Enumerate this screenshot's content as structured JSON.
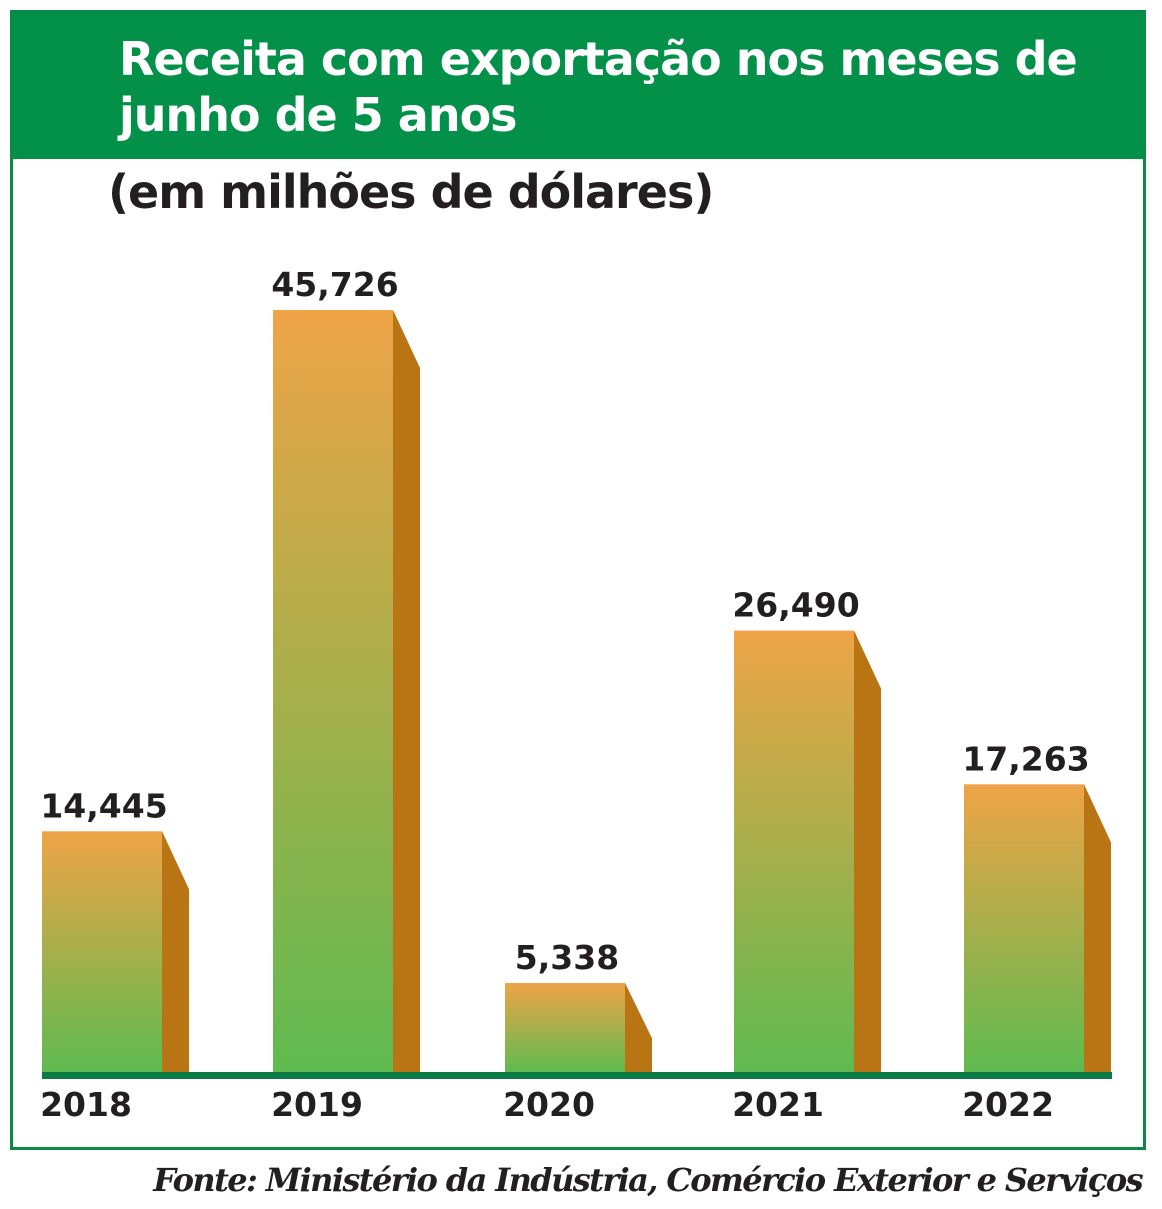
{
  "chart_data": {
    "type": "bar",
    "title": "Receita com exportação nos meses de junho de 5 anos",
    "subtitle": "(em milhões de dólares)",
    "categories": [
      "2018",
      "2019",
      "2020",
      "2021",
      "2022"
    ],
    "values": [
      14445,
      45726,
      5338,
      26490,
      17263
    ],
    "value_labels": [
      "14,445",
      "45,726",
      "5,338",
      "26,490",
      "17,263"
    ],
    "xlabel": "",
    "ylabel": "",
    "ylim": [
      0,
      45726
    ],
    "grid": false,
    "legend": "none",
    "source": "Fonte: Ministério da Indústria, Comércio Exterior e Serviços"
  },
  "colors": {
    "header_background": "#039049",
    "frame_border": "#0a8a45",
    "bar_top": "#eea447",
    "bar_bottom": "#5fba50",
    "bar_side": "#b97414",
    "baseline": "#0b7a45",
    "text": "#231f20",
    "title_text": "#ffffff"
  }
}
